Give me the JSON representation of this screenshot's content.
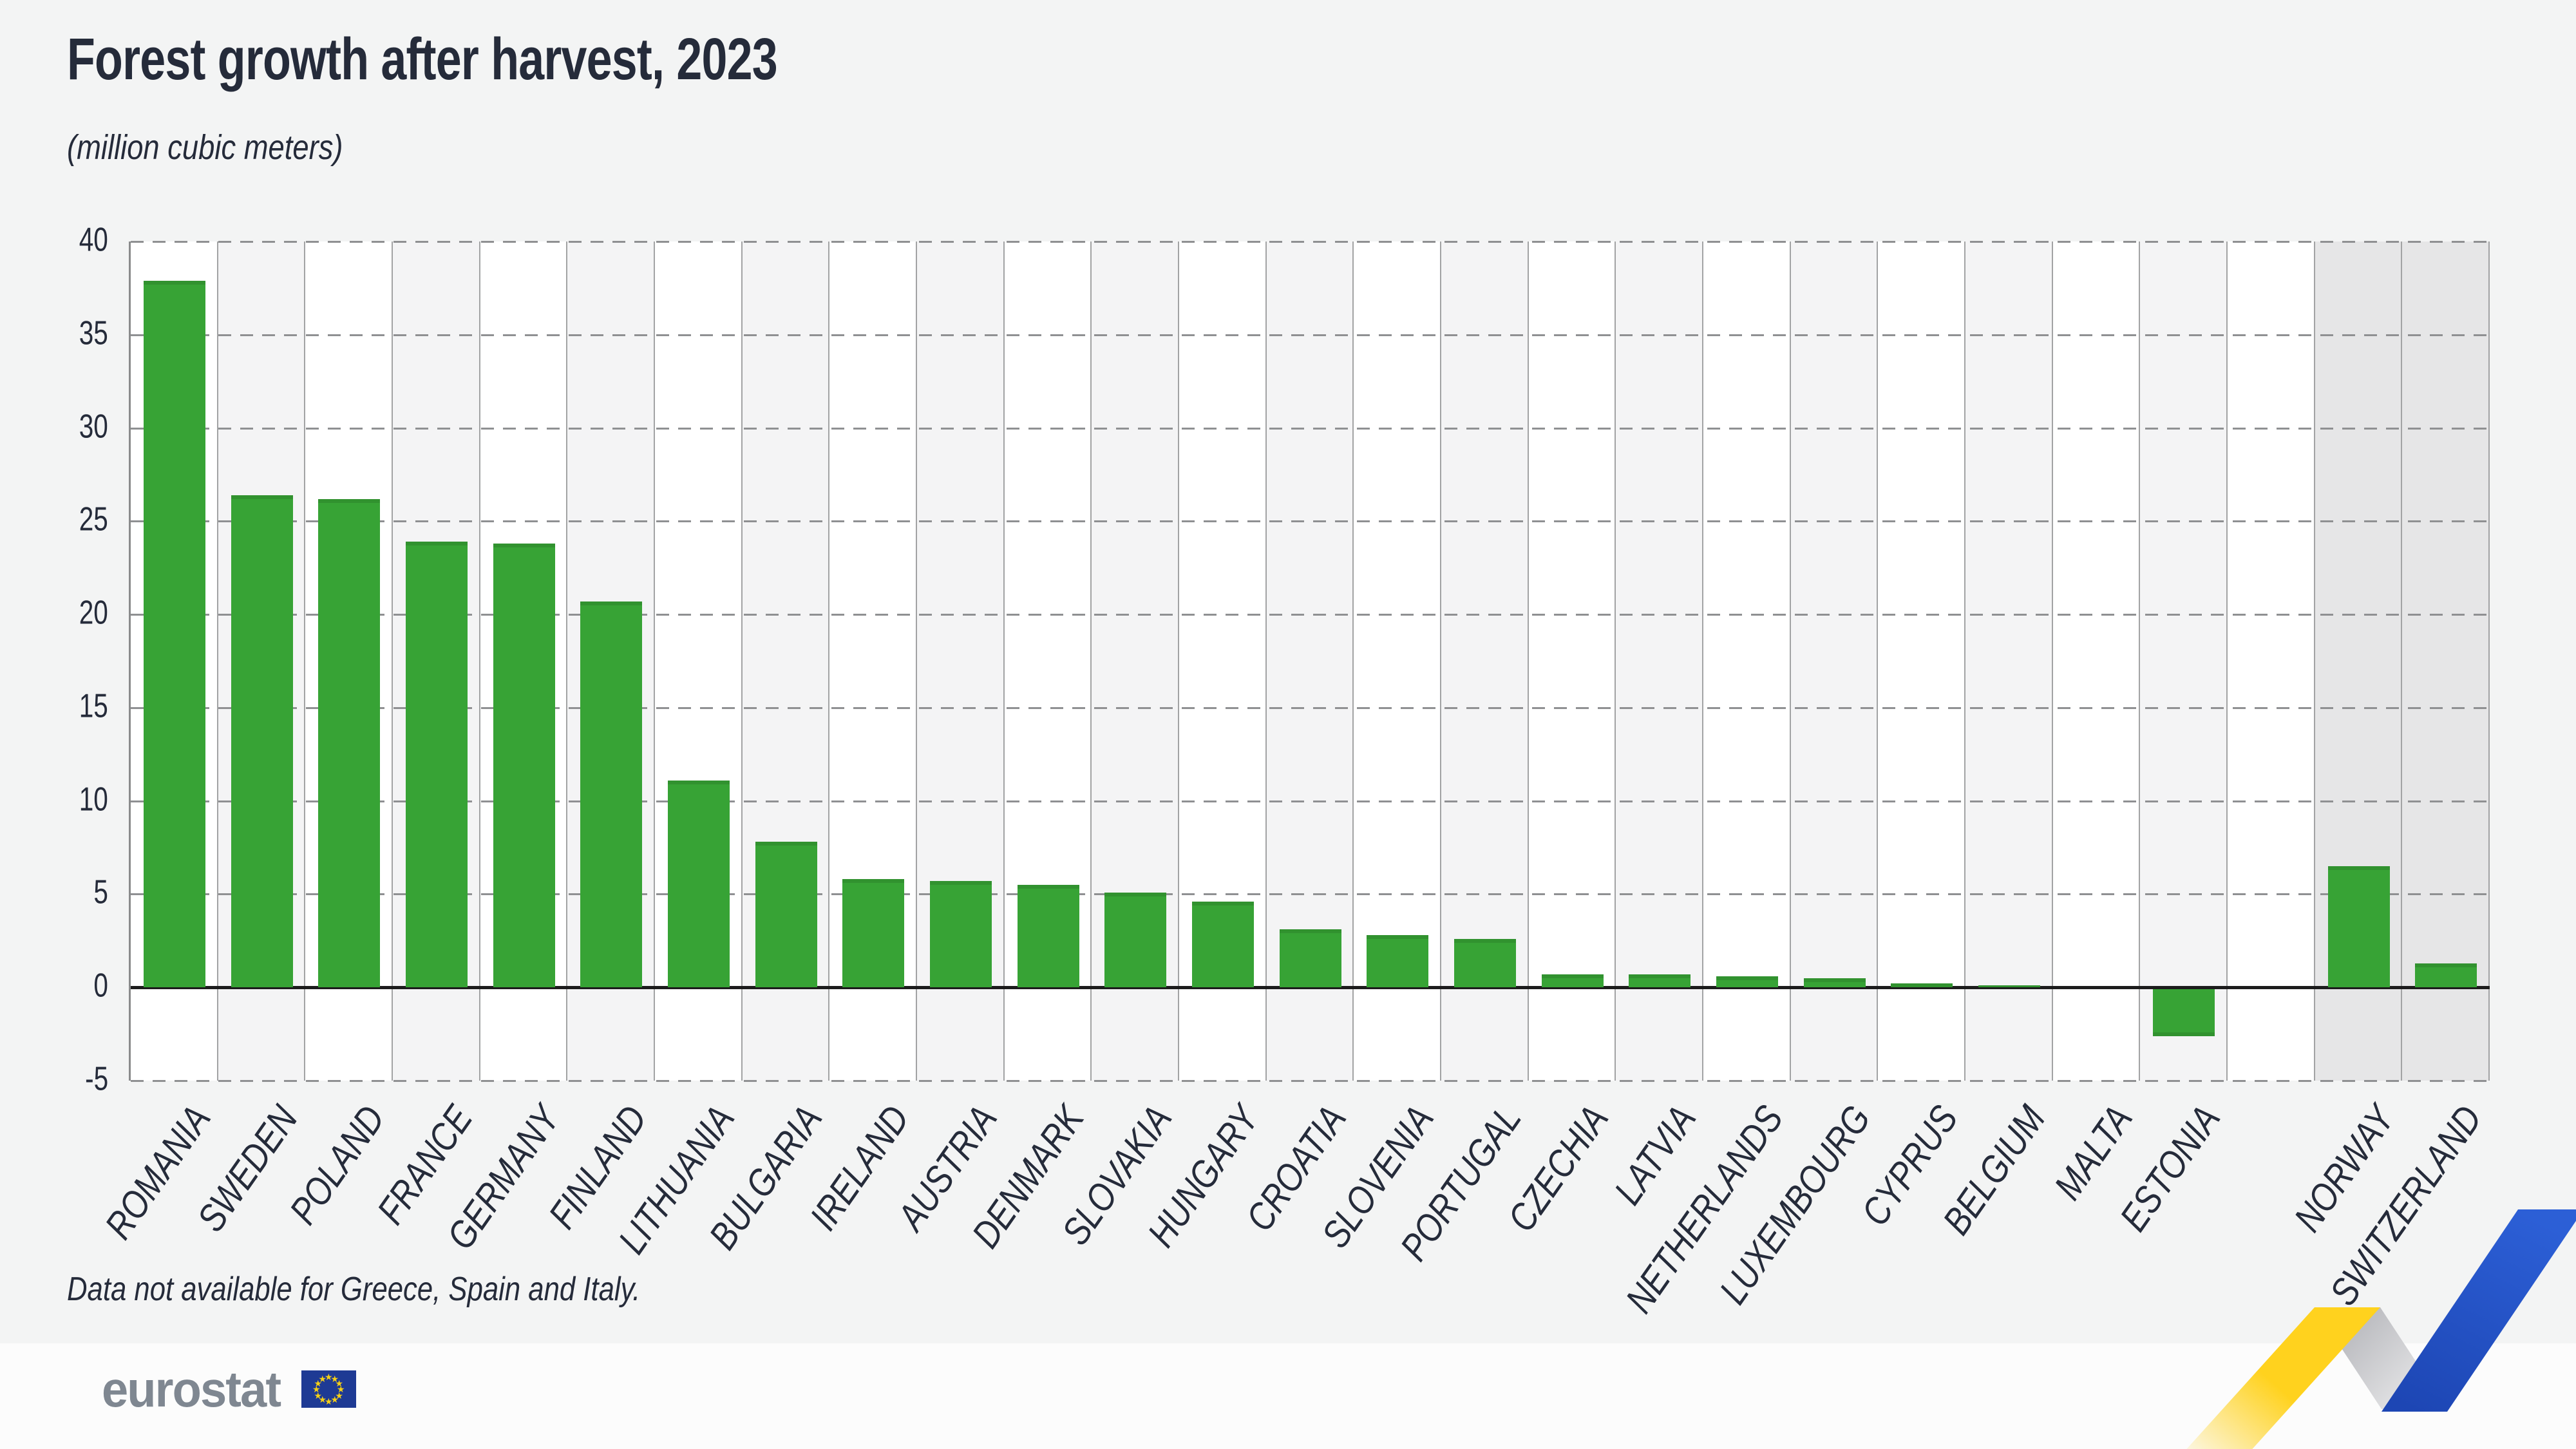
{
  "header": {
    "title": "Forest growth after harvest, 2023",
    "subtitle": "(million cubic meters)"
  },
  "footnote": "Data not available for Greece, Spain and Italy.",
  "brand": {
    "logo_text": "eurostat"
  },
  "colors": {
    "page_bg": "#f3f4f4",
    "text_dark": "#252b3a",
    "green": "#37a335",
    "grid": "#8f9092",
    "col_line": "#a2a3a4",
    "axis_line": "#8a8b8c",
    "zero": "#1c1c1c",
    "col_white": "#ffffff",
    "col_alt": "#f4f4f5",
    "col_dark": "#e6e6e7",
    "band_bg": "#fcfcfc",
    "logo_gray": "#7f8791",
    "flag_blue": "#1e3a94",
    "flag_star": "#f6d015",
    "zig_yellow": "#ffd21e",
    "zig_gray_from": "#aeafb4",
    "zig_gray_to": "#f1f1f2",
    "zig_blue_from": "#2c5fd6",
    "zig_blue_to": "#1d46b4"
  },
  "chart_data": {
    "type": "bar",
    "title": "Forest growth after harvest, 2023",
    "unit_label": "(million cubic meters)",
    "categories": [
      "ROMANIA",
      "SWEDEN",
      "POLAND",
      "FRANCE",
      "GERMANY",
      "FINLAND",
      "LITHUANIA",
      "BULGARIA",
      "IRELAND",
      "AUSTRIA",
      "DENMARK",
      "SLOVAKIA",
      "HUNGARY",
      "CROATIA",
      "SLOVENIA",
      "PORTUGAL",
      "CZECHIA",
      "LATVIA",
      "NETHERLANDS",
      "LUXEMBOURG",
      "CYPRUS",
      "BELGIUM",
      "MALTA",
      "ESTONIA",
      "NORWAY",
      "SWITZERLAND"
    ],
    "values": [
      37.9,
      26.4,
      26.2,
      23.9,
      23.8,
      20.7,
      11.1,
      7.8,
      5.8,
      5.7,
      5.5,
      5.1,
      4.6,
      3.1,
      2.8,
      2.6,
      0.7,
      0.7,
      0.6,
      0.5,
      0.2,
      0.1,
      0.0,
      -2.5,
      6.5,
      1.3
    ],
    "non_eu_highlighted": [
      "NORWAY",
      "SWITZERLAND"
    ],
    "separator_before": "NORWAY",
    "yticks": [
      40,
      35,
      30,
      25,
      20,
      15,
      10,
      5,
      0,
      -5
    ],
    "ylim": [
      -5,
      40
    ],
    "grid": "dashed horizontal",
    "legend": "none",
    "bar_color": "#37a335",
    "flag_star_count": 12
  }
}
